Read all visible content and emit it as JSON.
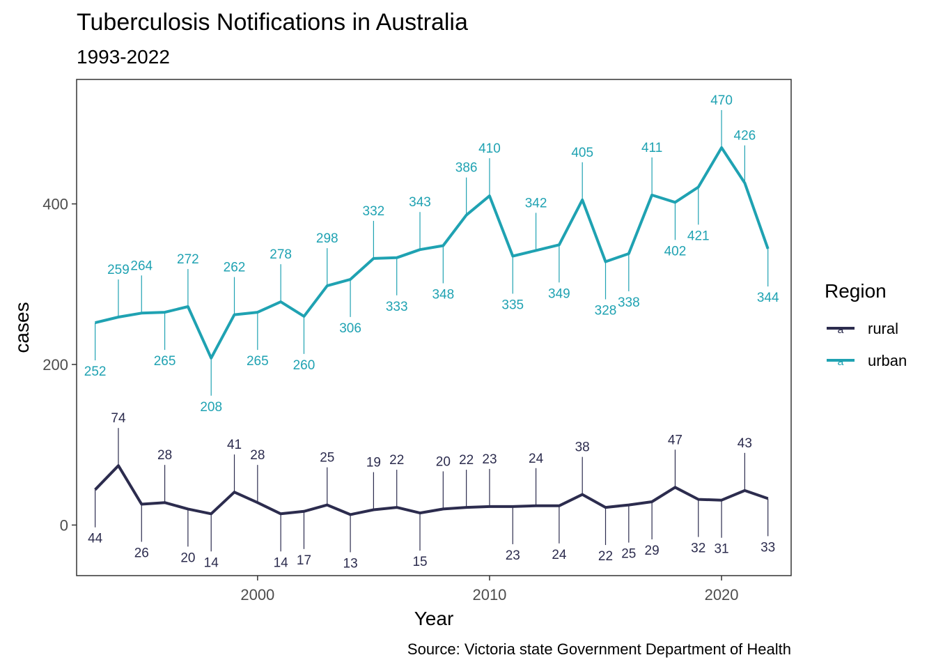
{
  "chart_data": {
    "type": "line",
    "title": "Tuberculosis Notifications in Australia",
    "subtitle": "1993-2022",
    "xlabel": "Year",
    "ylabel": "cases",
    "caption": "Source: Victoria state Government Department of Health",
    "xlim": [
      1992.2,
      2023.0
    ],
    "ylim": [
      -63,
      555
    ],
    "x_ticks": [
      2000,
      2010,
      2020
    ],
    "y_ticks": [
      0,
      200,
      400
    ],
    "grid": false,
    "legend": {
      "title": "Region",
      "placement": "right",
      "key_glyph": "a"
    },
    "x": [
      1993,
      1994,
      1995,
      1996,
      1997,
      1998,
      1999,
      2000,
      2001,
      2002,
      2003,
      2004,
      2005,
      2006,
      2007,
      2008,
      2009,
      2010,
      2011,
      2012,
      2013,
      2014,
      2015,
      2016,
      2017,
      2018,
      2019,
      2020,
      2021,
      2022
    ],
    "series": [
      {
        "name": "rural",
        "color": "#2c2c4e",
        "values": [
          44,
          74,
          26,
          28,
          20,
          14,
          41,
          28,
          14,
          17,
          25,
          13,
          19,
          22,
          15,
          20,
          22,
          23,
          23,
          24,
          24,
          38,
          22,
          25,
          29,
          47,
          32,
          31,
          43,
          33
        ]
      },
      {
        "name": "urban",
        "color": "#1fa2b2",
        "values": [
          252,
          259,
          264,
          265,
          272,
          208,
          262,
          265,
          278,
          260,
          298,
          306,
          332,
          333,
          343,
          348,
          386,
          410,
          335,
          342,
          349,
          405,
          328,
          338,
          411,
          402,
          421,
          470,
          426,
          344
        ]
      }
    ]
  }
}
